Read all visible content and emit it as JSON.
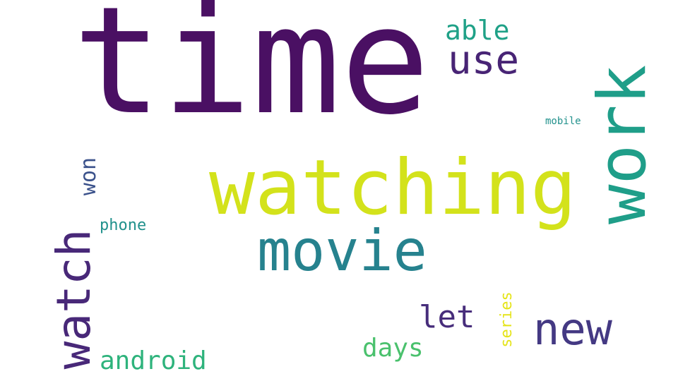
{
  "words": [
    {
      "text": "time",
      "color": "#4a1063"
    },
    {
      "text": "watching",
      "color": "#d3e21b"
    },
    {
      "text": "work",
      "color": "#1f9e89"
    },
    {
      "text": "movie",
      "color": "#26828e"
    },
    {
      "text": "watch",
      "color": "#482878"
    },
    {
      "text": "use",
      "color": "#482475"
    },
    {
      "text": "able",
      "color": "#1fa187"
    },
    {
      "text": "new",
      "color": "#443983"
    },
    {
      "text": "let",
      "color": "#472d7b"
    },
    {
      "text": "days",
      "color": "#4ac16d"
    },
    {
      "text": "android",
      "color": "#2eb37c"
    },
    {
      "text": "won",
      "color": "#3b528b"
    },
    {
      "text": "phone",
      "color": "#21918c"
    },
    {
      "text": "series",
      "color": "#e5e419"
    },
    {
      "text": "mobile",
      "color": "#21918c"
    }
  ]
}
